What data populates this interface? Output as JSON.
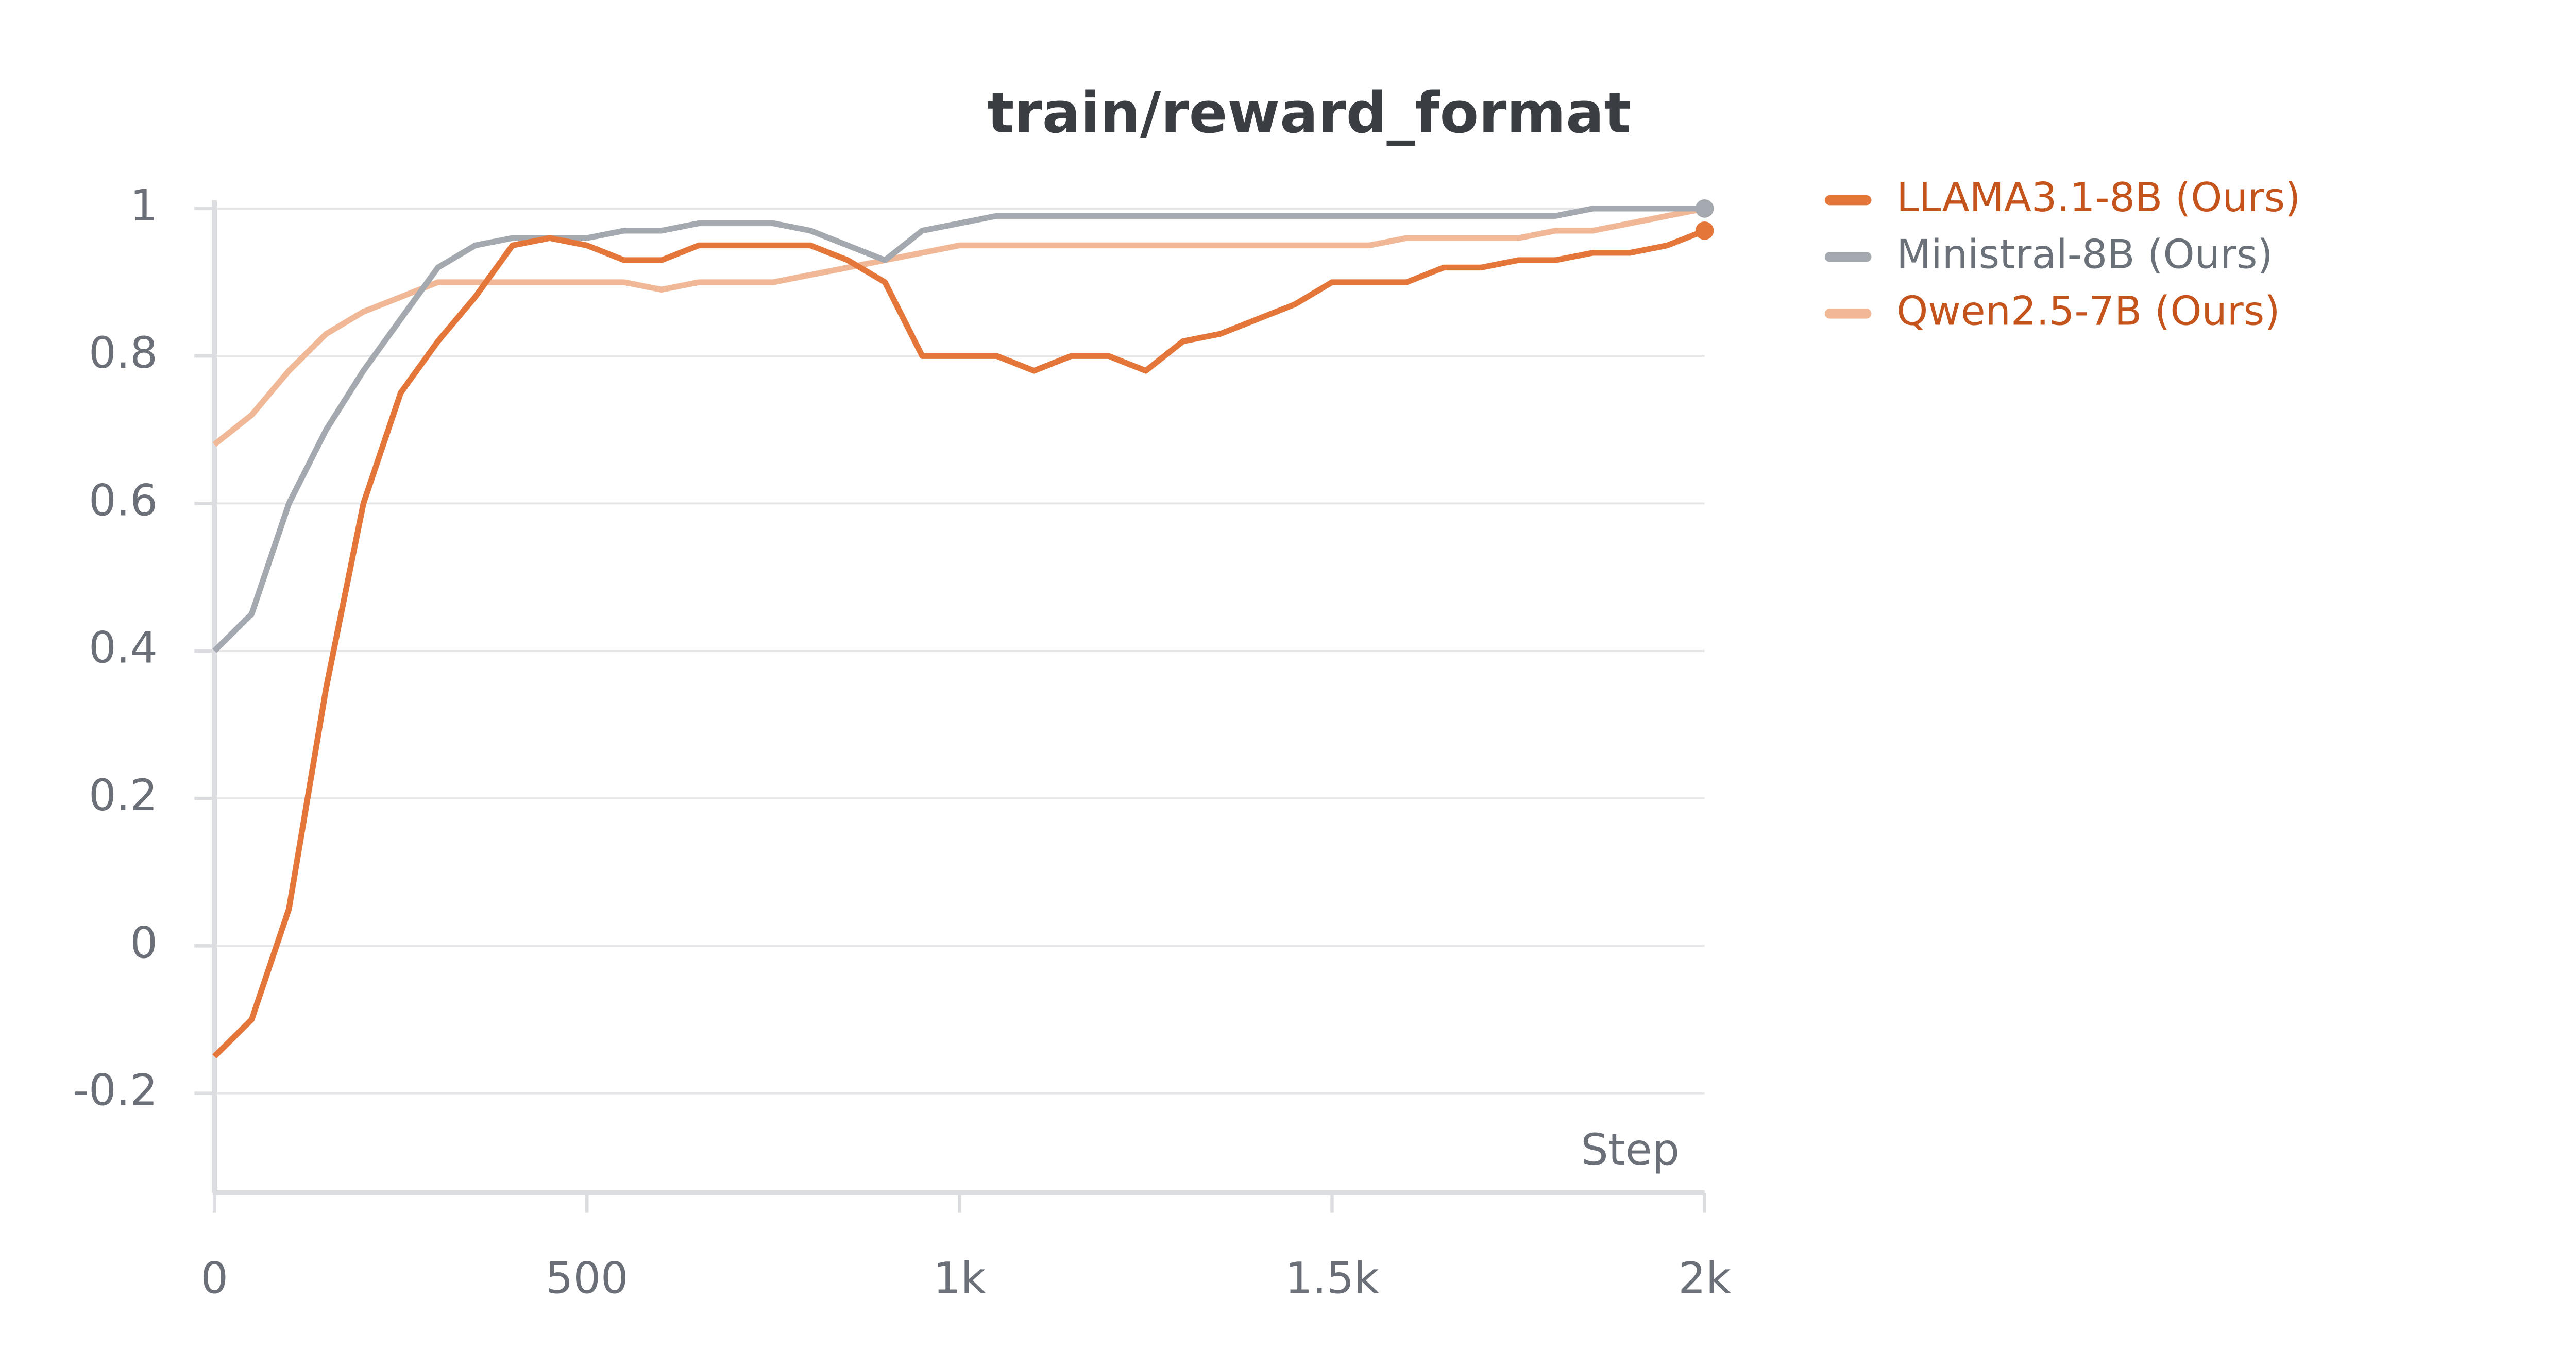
{
  "chart_data": {
    "type": "line",
    "title": "train/reward_format",
    "x_label": "Step",
    "x": [
      0,
      50,
      100,
      150,
      200,
      250,
      300,
      350,
      400,
      450,
      500,
      550,
      600,
      650,
      700,
      750,
      800,
      850,
      900,
      950,
      1000,
      1050,
      1100,
      1150,
      1200,
      1250,
      1300,
      1350,
      1400,
      1450,
      1500,
      1550,
      1600,
      1650,
      1700,
      1750,
      1800,
      1850,
      1900,
      1950,
      2000
    ],
    "series": [
      {
        "name": "LLAMA3.1-8B (Ours)",
        "color": "#e5763a",
        "values": [
          -0.15,
          -0.1,
          0.05,
          0.35,
          0.6,
          0.75,
          0.82,
          0.88,
          0.95,
          0.96,
          0.95,
          0.93,
          0.93,
          0.95,
          0.95,
          0.95,
          0.95,
          0.93,
          0.9,
          0.8,
          0.8,
          0.8,
          0.78,
          0.8,
          0.8,
          0.78,
          0.82,
          0.83,
          0.85,
          0.87,
          0.9,
          0.9,
          0.9,
          0.92,
          0.92,
          0.93,
          0.93,
          0.94,
          0.94,
          0.95,
          0.97
        ]
      },
      {
        "name": "Ministral-8B (Ours)",
        "color": "#a3a9ae",
        "values": [
          0.4,
          0.45,
          0.6,
          0.7,
          0.78,
          0.85,
          0.92,
          0.95,
          0.96,
          0.96,
          0.96,
          0.97,
          0.97,
          0.98,
          0.98,
          0.98,
          0.97,
          0.95,
          0.93,
          0.97,
          0.98,
          0.99,
          0.99,
          0.99,
          0.99,
          0.99,
          0.99,
          0.99,
          0.99,
          0.99,
          0.99,
          0.99,
          0.99,
          0.99,
          0.99,
          0.99,
          0.99,
          1,
          1,
          1,
          1
        ]
      },
      {
        "name": "Qwen2.5-7B (Ours)",
        "color": "#f0b896",
        "values": [
          0.68,
          0.72,
          0.78,
          0.83,
          0.86,
          0.88,
          0.9,
          0.9,
          0.9,
          0.9,
          0.9,
          0.9,
          0.89,
          0.9,
          0.9,
          0.9,
          0.91,
          0.92,
          0.93,
          0.94,
          0.95,
          0.95,
          0.95,
          0.95,
          0.95,
          0.95,
          0.95,
          0.95,
          0.95,
          0.95,
          0.95,
          0.95,
          0.96,
          0.96,
          0.96,
          0.96,
          0.97,
          0.97,
          0.98,
          0.99,
          1
        ]
      }
    ],
    "xlim": [
      0,
      2000
    ],
    "xticks": [
      0,
      500,
      {
        "value": 1000,
        "label": "1k"
      },
      {
        "value": 1500,
        "label": "1.5k"
      },
      {
        "value": 2000,
        "label": "2k"
      }
    ],
    "ylim": [
      -0.335,
      1
    ],
    "yticks": [
      -0.2,
      0,
      0.2,
      0.4,
      0.6,
      0.8,
      1
    ],
    "grid": true,
    "legend": "right"
  }
}
